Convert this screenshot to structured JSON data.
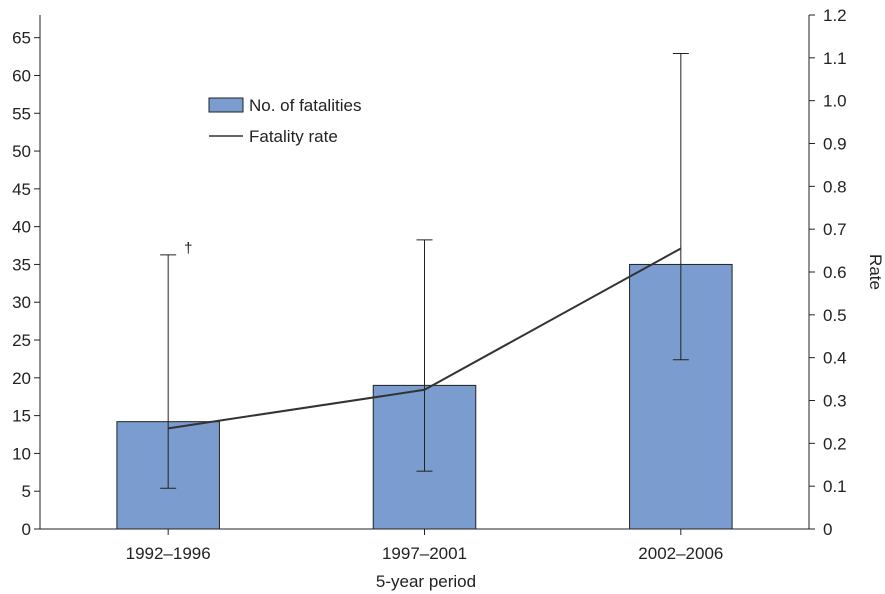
{
  "chart_data": {
    "type": "bar",
    "categories": [
      "1992–1996",
      "1997–2001",
      "2002–2006"
    ],
    "xlabel": "5-year period",
    "ylabel": "",
    "y2label": "Rate",
    "ylim": [
      0,
      68
    ],
    "yticks": [
      0,
      5,
      10,
      15,
      20,
      25,
      30,
      35,
      40,
      45,
      50,
      55,
      60,
      65
    ],
    "y2lim": [
      0,
      1.2
    ],
    "y2ticks": [
      "0",
      "0.1",
      "0.2",
      "0.3",
      "0.4",
      "0.5",
      "0.6",
      "0.7",
      "0.8",
      "0.9",
      "1.0",
      "1.1",
      "1.2"
    ],
    "series": [
      {
        "name": "No. of fatalities",
        "kind": "bar",
        "axis": "left",
        "color": "#7b9ccf",
        "values": [
          14.2,
          19,
          35
        ]
      },
      {
        "name": "Fatality rate",
        "kind": "line",
        "axis": "right",
        "color": "#333333",
        "values": [
          0.235,
          0.325,
          0.655
        ],
        "error_low": [
          0.095,
          0.135,
          0.395
        ],
        "error_high": [
          0.64,
          0.675,
          1.11
        ]
      }
    ],
    "annotations": [
      {
        "category": "1992–1996",
        "text": "†"
      }
    ],
    "legend": "upper-left inside plot",
    "grid": false
  }
}
